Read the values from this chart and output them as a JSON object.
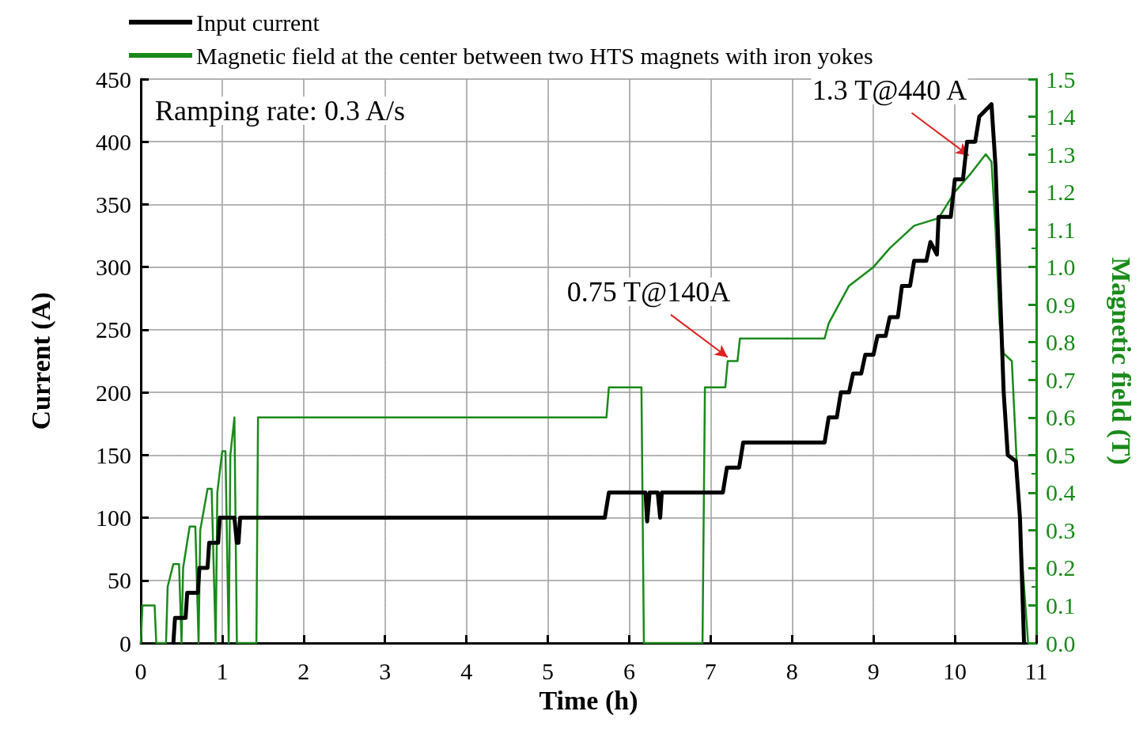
{
  "chart_data": {
    "type": "line",
    "xlabel": "Time (h)",
    "ylabel": "Current (A)",
    "y2label": "Magnetic field (T)",
    "xlim": [
      0,
      11
    ],
    "xticks": [
      0,
      1,
      2,
      3,
      4,
      5,
      6,
      7,
      8,
      9,
      10,
      11
    ],
    "ylim": [
      0,
      450
    ],
    "yticks": [
      0,
      50,
      100,
      150,
      200,
      250,
      300,
      350,
      400,
      450
    ],
    "y2lim": [
      0,
      1.5
    ],
    "y2ticks": [
      {
        "value": 0,
        "label": "0.0"
      },
      {
        "value": 0.1,
        "label": "0.1"
      },
      {
        "value": 0.2,
        "label": "0.2"
      },
      {
        "value": 0.3,
        "label": "0.3"
      },
      {
        "value": 0.4,
        "label": "0.4"
      },
      {
        "value": 0.5,
        "label": "0.5"
      },
      {
        "value": 0.6,
        "label": "0.6"
      },
      {
        "value": 0.7,
        "label": "0.7"
      },
      {
        "value": 0.8,
        "label": "0.8"
      },
      {
        "value": 0.9,
        "label": "0.9"
      },
      {
        "value": 1.0,
        "label": "1.0"
      },
      {
        "value": 1.1,
        "label": "1.1"
      },
      {
        "value": 1.2,
        "label": "1.2"
      },
      {
        "value": 1.3,
        "label": "1.3"
      },
      {
        "value": 1.4,
        "label": "1.4"
      },
      {
        "value": 1.5,
        "label": "1.5"
      }
    ],
    "grid": true,
    "legend": "top left",
    "marker": "none",
    "line_style": "solid",
    "annotations": [
      "Ramping rate: 0.3 A/s",
      {
        "text": "1.3 T@440 A",
        "x": 10.17,
        "y": 389
      },
      {
        "text": "0.75 T@140A",
        "x": 7.21,
        "y": 228
      }
    ],
    "series": [
      {
        "name": "Input current",
        "color": "#000000",
        "x": [
          0.4,
          0.42,
          0.55,
          0.57,
          0.7,
          0.72,
          0.82,
          0.84,
          0.95,
          0.97,
          1.15,
          1.18,
          1.2,
          1.22,
          5.7,
          5.75,
          6.2,
          6.22,
          6.25,
          6.35,
          6.38,
          6.4,
          7.15,
          7.2,
          7.35,
          7.4,
          8.4,
          8.45,
          8.55,
          8.6,
          8.7,
          8.75,
          8.85,
          8.9,
          9.0,
          9.05,
          9.15,
          9.2,
          9.3,
          9.35,
          9.45,
          9.5,
          9.65,
          9.7,
          9.78,
          9.8,
          9.95,
          10.0,
          10.1,
          10.15,
          10.25,
          10.3,
          10.45,
          10.5,
          10.6,
          10.65,
          10.75,
          10.8,
          10.85
        ],
        "values": [
          0,
          20,
          20,
          40,
          40,
          60,
          60,
          80,
          80,
          100,
          100,
          80,
          80,
          100,
          100,
          120,
          120,
          97,
          120,
          120,
          100,
          120,
          120,
          140,
          140,
          160,
          160,
          180,
          180,
          200,
          200,
          215,
          215,
          230,
          230,
          245,
          245,
          260,
          260,
          285,
          285,
          305,
          305,
          320,
          310,
          340,
          340,
          370,
          370,
          400,
          400,
          420,
          430,
          380,
          200,
          150,
          145,
          100,
          0
        ]
      },
      {
        "name": "Magnetic field at the center between two HTS magnets with iron yokes",
        "color": "#1a8a1a",
        "axis": "y2",
        "x": [
          0,
          0.02,
          0.17,
          0.19,
          0.31,
          0.33,
          0.4,
          0.47,
          0.5,
          0.52,
          0.6,
          0.67,
          0.71,
          0.73,
          0.82,
          0.87,
          0.92,
          0.94,
          1.0,
          1.04,
          1.08,
          1.1,
          1.15,
          1.18,
          1.42,
          1.44,
          5.72,
          5.75,
          6.15,
          6.18,
          6.9,
          6.93,
          7.18,
          7.21,
          7.33,
          7.36,
          8.4,
          8.45,
          8.7,
          9.0,
          9.2,
          9.5,
          9.8,
          10.0,
          10.2,
          10.38,
          10.45,
          10.5,
          10.55,
          10.6,
          10.7,
          10.8,
          10.9
        ],
        "values": [
          0,
          0.1,
          0.1,
          0,
          0,
          0.15,
          0.21,
          0.21,
          0,
          0.2,
          0.31,
          0.31,
          0,
          0.3,
          0.41,
          0.41,
          0,
          0.4,
          0.51,
          0.51,
          0,
          0.5,
          0.6,
          0,
          0,
          0.6,
          0.6,
          0.68,
          0.68,
          0,
          0,
          0.68,
          0.68,
          0.75,
          0.75,
          0.81,
          0.81,
          0.85,
          0.95,
          1.0,
          1.05,
          1.11,
          1.13,
          1.2,
          1.25,
          1.3,
          1.28,
          1.1,
          0.85,
          0.77,
          0.75,
          0.3,
          0
        ]
      }
    ]
  }
}
